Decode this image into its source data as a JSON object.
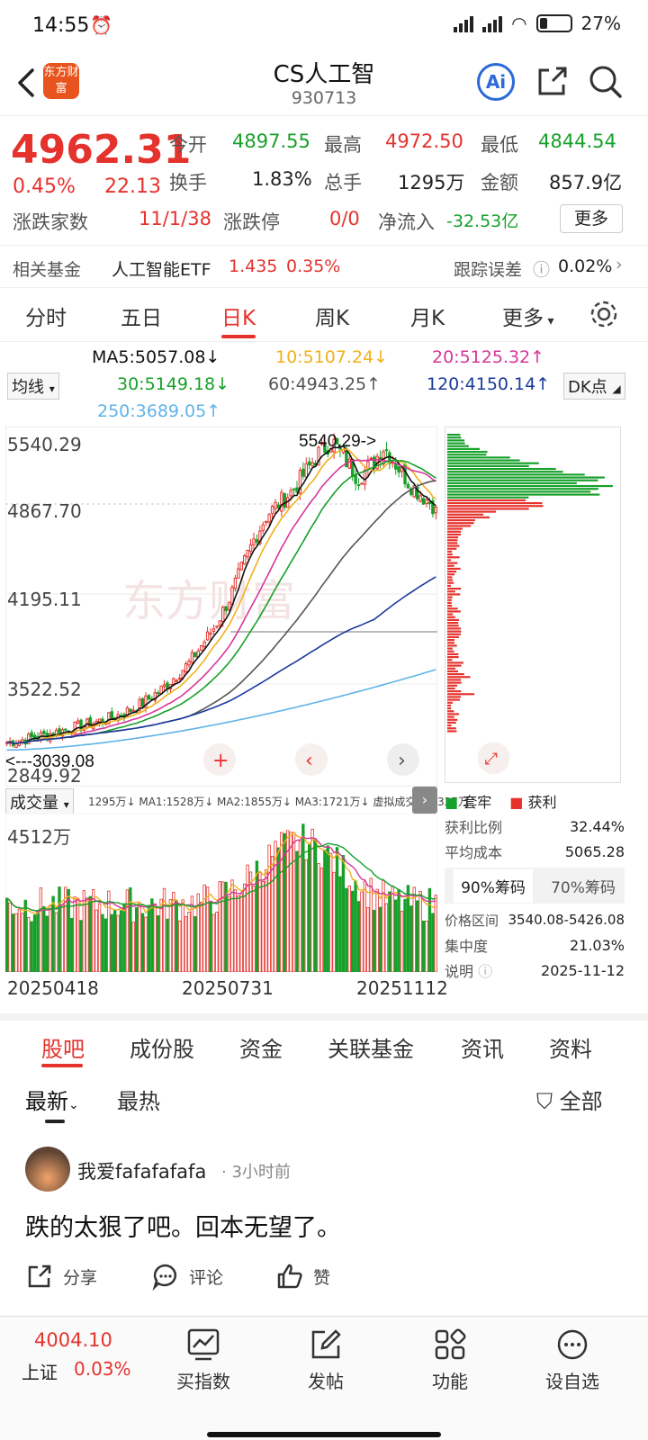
{
  "status": {
    "time": "14:55",
    "battery": "27%"
  },
  "header": {
    "logo_text": "东方财富",
    "title": "CS人工智",
    "code": "930713",
    "ai_label": "Ai"
  },
  "quote": {
    "price": "4962.31",
    "pct": "0.45%",
    "change": "22.13",
    "open_label": "今开",
    "open": "4897.55",
    "high_label": "最高",
    "high": "4972.50",
    "low_label": "最低",
    "low": "4844.54",
    "turnover_label": "换手",
    "turnover": "1.83%",
    "volume_label": "总手",
    "volume": "1295万",
    "amount_label": "金额",
    "amount": "857.9亿",
    "updown_label": "涨跌家数",
    "updown": "11/1/38",
    "limit_label": "涨跌停",
    "limit": "0/0",
    "netflow_label": "净流入",
    "netflow": "-32.53亿",
    "more": "更多"
  },
  "fund": {
    "label": "相关基金",
    "name": "人工智能ETF",
    "price": "1.435",
    "pct": "0.35%",
    "track_label": "跟踪误差",
    "track_value": "0.02%"
  },
  "periods": [
    "分时",
    "五日",
    "日K",
    "周K",
    "月K",
    "更多"
  ],
  "active_period": "日K",
  "ma": {
    "select": "均线",
    "ma5": "MA5:5057.08↓",
    "ma10": "10:5107.24↓",
    "ma20": "20:5125.32↑",
    "ma30": "30:5149.18↓",
    "ma60": "60:4943.25↑",
    "ma120": "120:4150.14↑",
    "ma250": "250:3689.05↑",
    "dk": "DK点"
  },
  "colors": {
    "up": "#e5322d",
    "down": "#17a02a",
    "ma5": "#111111",
    "ma10": "#f2b01e",
    "ma20": "#d6369a",
    "ma30": "#17a02a",
    "ma60": "#555555",
    "ma120": "#1a3a9c",
    "ma250": "#5fb3e8"
  },
  "kchart": {
    "y_labels": [
      "5540.29",
      "4867.70",
      "4195.11",
      "3522.52",
      "2849.92"
    ],
    "max_note": "5540.29->",
    "min_note": "<---3039.08",
    "watermark": "东方财富"
  },
  "chart_data": {
    "type": "candlestick",
    "ylim": [
      2849.92,
      5540.29
    ],
    "x_start": "20250418",
    "x_mid": "20250731",
    "x_end": "20251112",
    "max_value": 5540.29,
    "min_value": 3039.08,
    "closes_approx": [
      3060,
      3080,
      3100,
      3120,
      3150,
      3180,
      3200,
      3230,
      3260,
      3300,
      3350,
      3420,
      3500,
      3600,
      3700,
      3850,
      4000,
      4200,
      4450,
      4700,
      4900,
      5000,
      5100,
      5250,
      5400,
      5500,
      5350,
      5200,
      5300,
      5450,
      5300,
      5150,
      5050,
      4962.31
    ]
  },
  "vol": {
    "select": "成交量",
    "legend": "1295万↓  MA1:1528万↓  MA2:1855万↓  MA3:1721万↓  虚拟成交量:1337万",
    "top_label": "4512万"
  },
  "chips": {
    "legend_trapped": "套牢",
    "legend_profit": "获利",
    "profit_ratio_label": "获利比例",
    "profit_ratio": "32.44%",
    "avg_cost_label": "平均成本",
    "avg_cost": "5065.28",
    "tab90": "90%筹码",
    "tab70": "70%筹码",
    "range_label": "价格区间",
    "range": "3540.08-5426.08",
    "conc_label": "集中度",
    "conc": "21.03%",
    "note_label": "说明",
    "date": "2025-11-12"
  },
  "dates": [
    "20250418",
    "20250731",
    "20251112"
  ],
  "bottom_tabs": [
    "股吧",
    "成份股",
    "资金",
    "关联基金",
    "资讯",
    "资料"
  ],
  "sort": {
    "latest": "最新",
    "hot": "最热",
    "filter": "全部"
  },
  "post": {
    "user": "我爱fafafafafa",
    "time": "· 3小时前",
    "text": "跌的太狠了吧。回本无望了。",
    "share": "分享",
    "comment": "评论",
    "like": "赞"
  },
  "bnav": {
    "index_value": "4004.10",
    "index_name": "上证",
    "index_pct": "0.03%",
    "buy": "买指数",
    "post": "发帖",
    "func": "功能",
    "watch": "设自选"
  }
}
